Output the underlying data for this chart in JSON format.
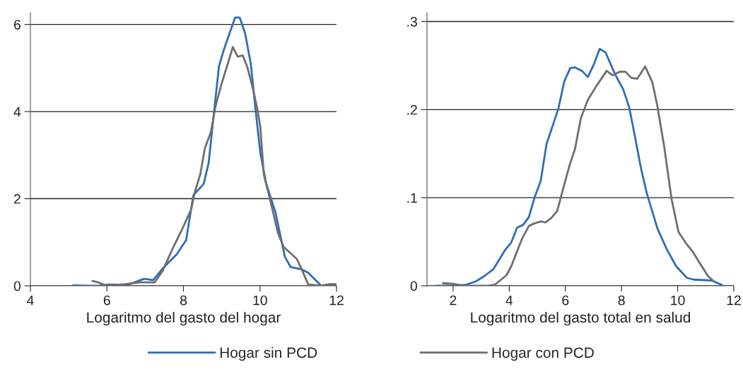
{
  "chart_data": [
    {
      "type": "line",
      "xlabel": "Logaritmo del gasto del hogar",
      "xlim": [
        4,
        12
      ],
      "xticks": [
        4,
        6,
        8,
        10,
        12
      ],
      "ylim": [
        0,
        6.27
      ],
      "yticks": [
        0,
        2,
        4,
        6
      ],
      "grid": "y",
      "legend": "bottom",
      "series": [
        {
          "name": "Hogar sin PCD",
          "color": "#2f6db5",
          "x": [
            5.12,
            5.5,
            5.8,
            6.05,
            6.54,
            6.97,
            7.21,
            7.46,
            7.83,
            8.07,
            8.26,
            8.53,
            8.66,
            8.81,
            8.93,
            9.06,
            9.35,
            9.47,
            9.61,
            9.76,
            9.88,
            10.01,
            10.16,
            10.4,
            10.65,
            10.8,
            11.08,
            11.26,
            11.57
          ],
          "values": [
            0.01,
            0,
            0,
            0.03,
            0.02,
            0.16,
            0.13,
            0.4,
            0.73,
            1.05,
            2.08,
            2.34,
            2.83,
            4.08,
            5.05,
            5.43,
            6.16,
            6.16,
            5.8,
            5.1,
            4.08,
            3.05,
            2.35,
            1.7,
            0.67,
            0.43,
            0.38,
            0.3,
            0.03
          ]
        },
        {
          "name": "Hogar con PCD",
          "color": "#6e6e6e",
          "x": [
            5.62,
            5.77,
            5.99,
            6.48,
            6.85,
            7.25,
            7.46,
            7.71,
            7.95,
            8.2,
            8.29,
            8.44,
            8.56,
            8.72,
            8.84,
            8.99,
            9.18,
            9.29,
            9.42,
            9.55,
            9.67,
            9.82,
            9.94,
            10.01,
            10.1,
            10.28,
            10.47,
            10.62,
            10.96,
            11.08,
            11.26,
            11.57,
            11.82,
            11.99
          ],
          "values": [
            0.11,
            0.08,
            0,
            0.04,
            0.08,
            0.08,
            0.35,
            0.84,
            1.27,
            1.75,
            2.13,
            2.56,
            3.16,
            3.54,
            4.13,
            4.62,
            5.16,
            5.48,
            5.26,
            5.29,
            5.02,
            4.51,
            4.02,
            3.64,
            2.56,
            1.92,
            1.21,
            0.89,
            0.62,
            0.4,
            0.03,
            0,
            0.04,
            0.04
          ]
        }
      ]
    },
    {
      "type": "line",
      "xlabel": "Logaritmo del gasto total en salud",
      "xlim": [
        1.07,
        12
      ],
      "xticks": [
        2,
        4,
        6,
        8,
        10,
        12
      ],
      "ylim": [
        0,
        0.31
      ],
      "yticks": [
        0,
        {
          "value": 0.1,
          "label": ".1"
        },
        {
          "value": 0.2,
          "label": ".2"
        },
        {
          "value": 0.3,
          "label": ".3"
        }
      ],
      "grid": "y",
      "series": [
        {
          "color": "#2f6db5",
          "x": [
            1.39,
            1.97,
            2.44,
            2.81,
            3.11,
            3.44,
            3.86,
            4.07,
            4.28,
            4.49,
            4.7,
            4.91,
            5.12,
            5.33,
            5.75,
            5.96,
            6.17,
            6.34,
            6.59,
            6.8,
            7.01,
            7.22,
            7.43,
            7.77,
            8.06,
            8.27,
            8.48,
            8.69,
            8.9,
            9.28,
            9.62,
            9.95,
            10.33,
            10.58,
            11.21,
            11.58
          ],
          "values": [
            0,
            0,
            0.001,
            0.005,
            0.011,
            0.019,
            0.041,
            0.049,
            0.066,
            0.069,
            0.078,
            0.101,
            0.119,
            0.161,
            0.201,
            0.232,
            0.247,
            0.248,
            0.244,
            0.237,
            0.251,
            0.269,
            0.265,
            0.24,
            0.223,
            0.203,
            0.169,
            0.134,
            0.105,
            0.065,
            0.041,
            0.022,
            0.009,
            0.007,
            0.006,
            0.001
          ]
        },
        {
          "color": "#6e6e6e",
          "x": [
            1.64,
            2.06,
            2.39,
            3.23,
            3.48,
            3.9,
            4.07,
            4.45,
            4.7,
            4.91,
            5.12,
            5.29,
            5.5,
            5.71,
            5.96,
            6.17,
            6.34,
            6.55,
            6.8,
            7.13,
            7.47,
            7.68,
            7.93,
            8.14,
            8.35,
            8.56,
            8.84,
            9.1,
            9.27,
            9.52,
            9.78,
            10.03,
            10.28,
            10.53,
            10.78,
            11.08,
            11.33
          ],
          "values": [
            0.003,
            0.002,
            0,
            0,
            0.001,
            0.012,
            0.022,
            0.053,
            0.068,
            0.071,
            0.073,
            0.072,
            0.077,
            0.085,
            0.115,
            0.139,
            0.155,
            0.19,
            0.211,
            0.228,
            0.244,
            0.239,
            0.243,
            0.243,
            0.236,
            0.235,
            0.249,
            0.231,
            0.205,
            0.158,
            0.099,
            0.061,
            0.049,
            0.039,
            0.026,
            0.011,
            0.004
          ]
        }
      ]
    }
  ]
}
